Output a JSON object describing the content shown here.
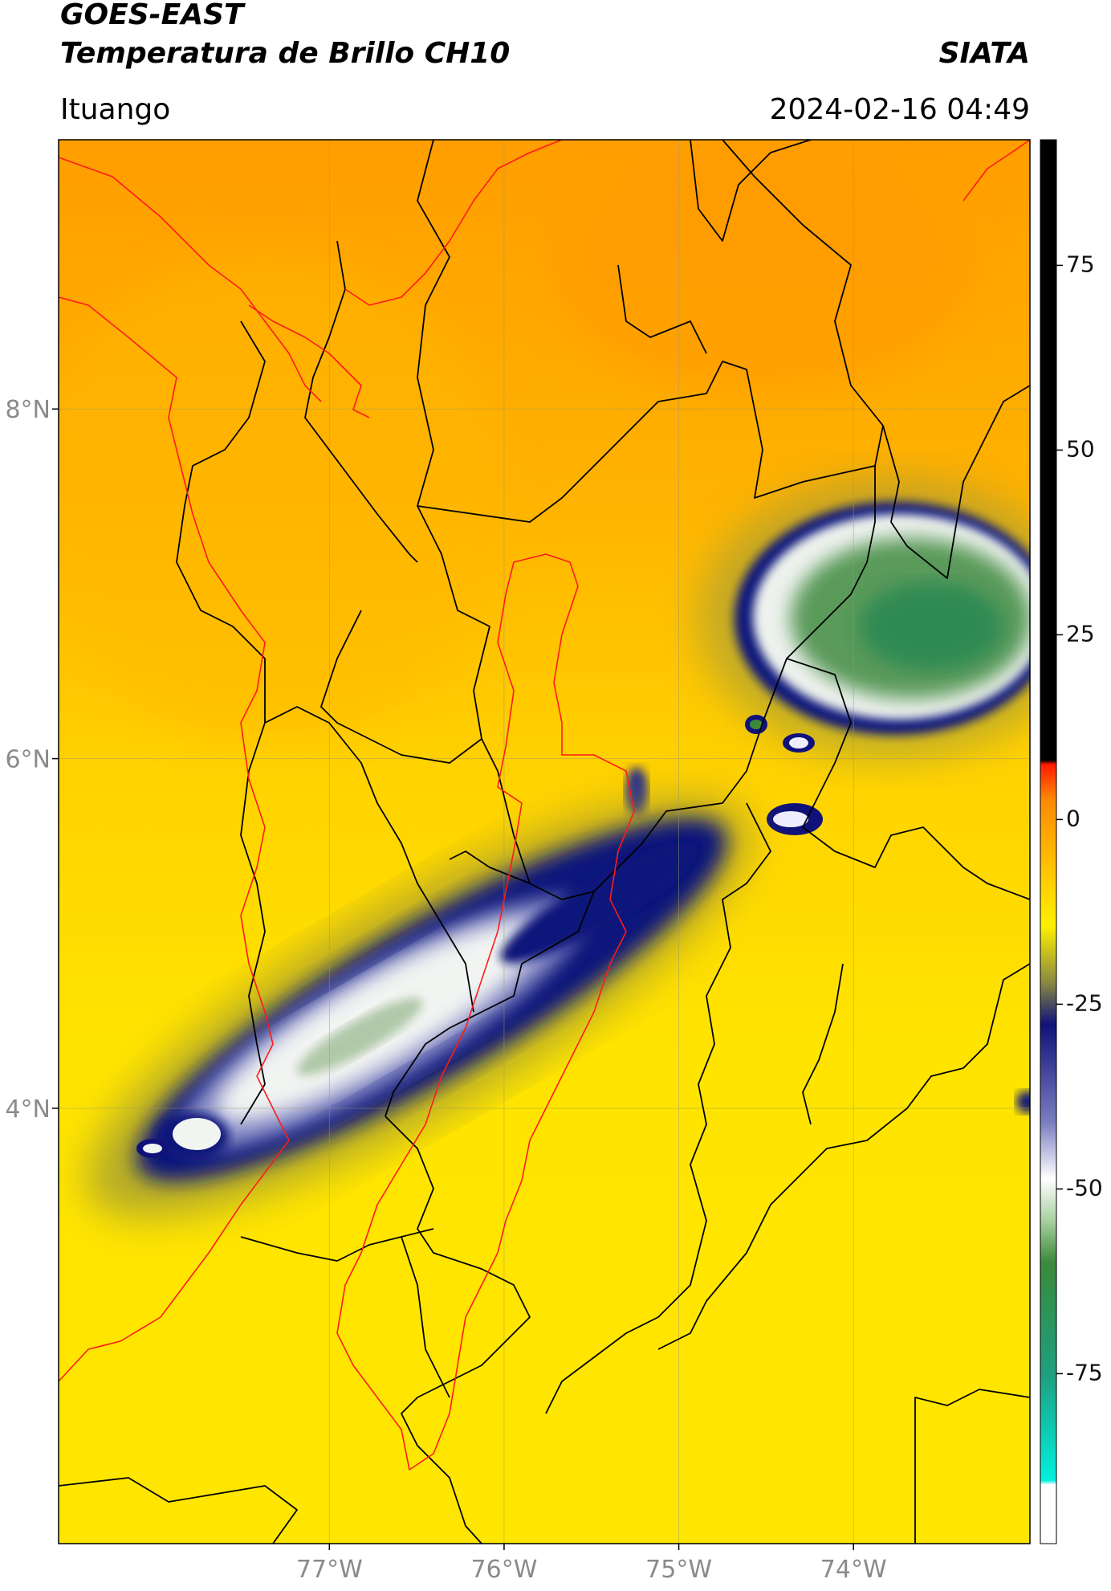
{
  "map": {
    "title": "GOES-EAST",
    "subtitle": "Temperatura de Brillo CH10",
    "source": "SIATA",
    "region": "Ituango",
    "timestamp": "2024-02-16 04:49",
    "xlim": [
      -78.55,
      -72.99
    ],
    "ylim": [
      1.51,
      9.54
    ],
    "xticks": [
      {
        "value": -77,
        "label": "77°W"
      },
      {
        "value": -76,
        "label": "76°W"
      },
      {
        "value": -75,
        "label": "75°W"
      },
      {
        "value": -74,
        "label": "74°W"
      }
    ],
    "yticks": [
      {
        "value": 8,
        "label": "8°N"
      },
      {
        "value": 6,
        "label": "6°N"
      },
      {
        "value": 4,
        "label": "4°N"
      }
    ],
    "colorbar": {
      "lim": [
        -98,
        92
      ],
      "ticks": [
        75,
        50,
        25,
        0,
        -25,
        -50,
        -75
      ]
    }
  }
}
